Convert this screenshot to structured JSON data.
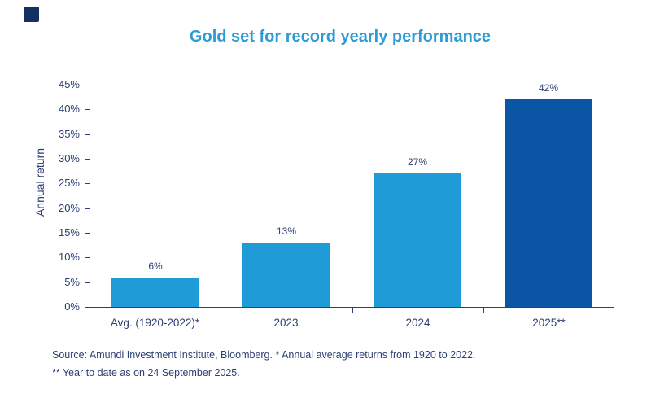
{
  "title": "Gold set for record yearly performance",
  "colors": {
    "title": "#2d9bd6",
    "bar": "#1f9cd8",
    "bar_highlight": "#0a56a4",
    "text": "#2c3f72",
    "axis": "#2c3f72",
    "brand_square": "#142f62"
  },
  "chart_data": {
    "type": "bar",
    "categories": [
      "Avg. (1920-2022)*",
      "2023",
      "2024",
      "2025**"
    ],
    "values": [
      6,
      13,
      27,
      42
    ],
    "value_labels": [
      "6%",
      "13%",
      "27%",
      "42%"
    ],
    "bar_colors": [
      "#1f9cd8",
      "#1f9cd8",
      "#1f9cd8",
      "#0a56a4"
    ],
    "title": "Gold set for record yearly performance",
    "xlabel": "",
    "ylabel": "Annual return",
    "ylim": [
      0,
      45
    ],
    "ytick_step": 5,
    "ytick_labels": [
      "0%",
      "5%",
      "10%",
      "15%",
      "20%",
      "25%",
      "30%",
      "35%",
      "40%",
      "45%"
    ],
    "grid": false,
    "legend": "none"
  },
  "footnote": {
    "line1": "Source: Amundi Investment Institute, Bloomberg. * Annual average returns from 1920 to 2022.",
    "line2": "** Year to date as on 24 September 2025."
  }
}
